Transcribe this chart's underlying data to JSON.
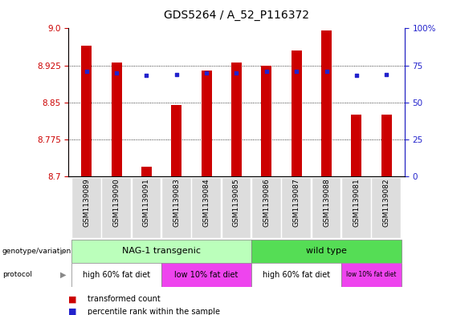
{
  "title": "GDS5264 / A_52_P116372",
  "samples": [
    "GSM1139089",
    "GSM1139090",
    "GSM1139091",
    "GSM1139083",
    "GSM1139084",
    "GSM1139085",
    "GSM1139086",
    "GSM1139087",
    "GSM1139088",
    "GSM1139081",
    "GSM1139082"
  ],
  "transformed_counts": [
    8.965,
    8.93,
    8.72,
    8.845,
    8.915,
    8.93,
    8.925,
    8.955,
    8.995,
    8.825,
    8.825
  ],
  "percentile_ranks": [
    71,
    70,
    68,
    69,
    70,
    70,
    71,
    71,
    71,
    68,
    69
  ],
  "ylim_left": [
    8.7,
    9.0
  ],
  "ylim_right": [
    0,
    100
  ],
  "yticks_left": [
    8.7,
    8.775,
    8.85,
    8.925,
    9.0
  ],
  "yticks_right": [
    0,
    25,
    50,
    75,
    100
  ],
  "bar_color": "#cc0000",
  "dot_color": "#2222cc",
  "bg_color": "#ffffff",
  "plot_bg": "#ffffff",
  "genotype_groups": [
    {
      "label": "NAG-1 transgenic",
      "start": 0,
      "end": 5,
      "color": "#bbffbb"
    },
    {
      "label": "wild type",
      "start": 6,
      "end": 10,
      "color": "#55dd55"
    }
  ],
  "protocol_groups": [
    {
      "label": "high 60% fat diet",
      "start": 0,
      "end": 2,
      "color": "#ffffff"
    },
    {
      "label": "low 10% fat diet",
      "start": 3,
      "end": 5,
      "color": "#ee44ee"
    },
    {
      "label": "high 60% fat diet",
      "start": 6,
      "end": 8,
      "color": "#ffffff"
    },
    {
      "label": "low 10% fat diet",
      "start": 9,
      "end": 10,
      "color": "#ee44ee"
    }
  ]
}
